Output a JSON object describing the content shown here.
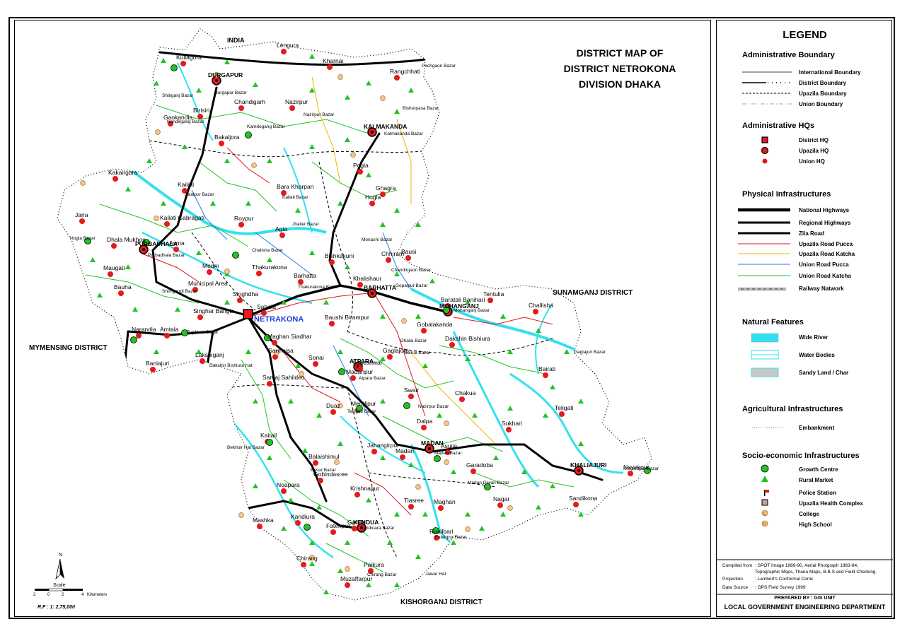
{
  "title": {
    "line1": "DISTRICT MAP OF",
    "line2": "DISTRICT NETROKONA",
    "line3": "DIVISION DHAKA"
  },
  "neighbors": {
    "north": "INDIA",
    "east": "SUNAMGANJ DISTRICT",
    "west": "MYMENSING DISTRICT",
    "south": "KISHORGANJ DISTRICT"
  },
  "district_hq": "NETRAKONA",
  "upazila_hqs": [
    "DURGAPUR",
    "KALMAKANDA",
    "PURBADHALA",
    "BARHATTA",
    "MOHANGANJ",
    "ATPARA",
    "MADAN",
    "KHALIAJURI",
    "KENDUA"
  ],
  "unions": [
    "Kullagora",
    "Lengura",
    "Kharnai",
    "Rangchhati",
    "Chandigarh",
    "Nazirpur",
    "Birisiri",
    "Gaokandia",
    "Bakaljora",
    "Pogla",
    "Ghagra",
    "Kakairgara",
    "Kailati",
    "Bara Kharpan",
    "Hogla",
    "Jaria",
    "Kailati Gabragati",
    "Roypur",
    "Agia",
    "Dhala Mukhon",
    "Asma",
    "Chhiram",
    "Bausi",
    "Bishkakuni",
    "Maugati",
    "Medni",
    "Thakurakona",
    "Barhatta",
    "Khalishaur",
    "Bauha",
    "Municipal Area",
    "Singhdha",
    "Baratali Banihari",
    "Tentulia",
    "Challisha",
    "Singhar Bangla",
    "Sahata",
    "Baushi Birampur",
    "Gobalakanda",
    "Narandia",
    "Amtala",
    "Maghan Siadhar",
    "Dakshin Bishiura",
    "Lakshiganj",
    "Sarmaisa",
    "Sonai",
    "Loneshwar",
    "Gaglajore",
    "Bairati",
    "Baniajuri",
    "Madanpur",
    "Samaj Sahildeo",
    "Swair",
    "Chakua",
    "Teligati",
    "Duaz",
    "Mendipur",
    "Sukhari",
    "Dalpa",
    "Kaitail",
    "Jahangirpur",
    "Madan",
    "Asujia",
    "Balaishimul",
    "Gobindasree",
    "Garadoba",
    "Noapara",
    "Krishnapur",
    "Nayekpur",
    "Tiasree",
    "Maghan",
    "Nagar",
    "Sandikona",
    "Kandiura",
    "Ganda",
    "Mashka",
    "Fatehpur",
    "Roailbari",
    "Chirang",
    "Paikura",
    "Muzaffarpur"
  ],
  "bazars": [
    "Pachgaon Bazar",
    "Shibganj Bazar",
    "Durgapur Bazar",
    "Nazirpur Bazar",
    "Bishorpasa Bazar",
    "Kamdogang Bazar",
    "Kalmakanda Bazar",
    "Nandirgang Bazar",
    "Jalalpur Bazar",
    "Kailati Bazar",
    "Hogla Bazar",
    "Jhalier Bazar",
    "Monashi Bazar",
    "Purbadhala Bazar",
    "Chalisha Bazar",
    "Chandirgaon Bazar",
    "Gopalpur Bazar",
    "Shimgandi Bazar",
    "Thakurakona Bazar",
    "Mohanganj Bazar",
    "Rajdhala Bazar",
    "Samai Bazar",
    "Dhalai Bazar",
    "Dakshin Bishiura Hat",
    "Atpara Bazar",
    "Nazirpur Bazar",
    "Telligati Bazar",
    "Bekhoir Hat Bazar",
    "Madan Bazar",
    "Basur Bazar",
    "Madan Diwan Bazar",
    "Kandiuara Bazar",
    "Fatehpur Bazar",
    "Jawar Hat",
    "Chirang Bazar",
    "Krishnapur Bazar",
    "Gaglajuri Bazar"
  ],
  "scale": {
    "north_label": "N",
    "scale_label": "Scale",
    "ticks": [
      "2",
      "0",
      "2",
      "4"
    ],
    "unit": "Kilometers",
    "rf": "R.F : 1: 2,75,000"
  },
  "legend": {
    "title": "LEGEND",
    "sections": {
      "admin_boundary": "Administrative Boundary",
      "admin_hqs": "Administrative HQs",
      "physical": "Physical Infrastructures",
      "natural": "Natural Features",
      "agri": "Agricultural Infrastructures",
      "socio": "Socio-economic Infrastructures"
    },
    "items": {
      "international": "International Boundary",
      "district": "District Boundary",
      "upazila_b": "Upazila Boundary",
      "union_b": "Union Boundary",
      "district_hq": "District HQ",
      "upazila_hq": "Upazila HQ",
      "union_hq": "Union HQ",
      "national": "National Highways",
      "regional": "Regional  Highways",
      "zila": "Zila Road",
      "upz_pucca": "Upazila Road Pucca",
      "upz_katcha": "Upazila Road Katcha",
      "union_pucca": "Union Road Pucca",
      "union_katcha": "Union Road Katcha",
      "railway": "Railway Natwork",
      "wide_river": "Wide River",
      "water_bodies": "Water Bodies",
      "sandy": "Sandy Land / Char",
      "embankment": "Embankment",
      "growth": "Growth Centre",
      "rural": "Rural Market",
      "police": "Police Station",
      "uhc": "Upazila Health Complex",
      "college": "College",
      "high_school": "High  School"
    }
  },
  "footer": {
    "compiled_label": "Compiled from",
    "compiled_value": ": SPOT Image 1989-90, Aerial Photgraph 1983-84,",
    "compiled_value2": "Topographic Maps, Thana Maps, B.B.S and Field Checking.",
    "projection_label": "Projection",
    "projection_value": ": Lambert's Conformal Conic",
    "source_label": "Data Source",
    "source_value": ": GPS Field Survey 1999",
    "prepared": "PREPARED BY : GIS UNIT",
    "org": "LOCAL GOVERNMENT ENGINEERING DEPARTMENT"
  },
  "colors": {
    "river": "#33e0f0",
    "union_katcha": "#22c422",
    "upazila_pucca": "#e0141e",
    "upazila_katcha": "#e6b800",
    "union_pucca": "#1f7fe6",
    "hq": "#e41a1c"
  }
}
